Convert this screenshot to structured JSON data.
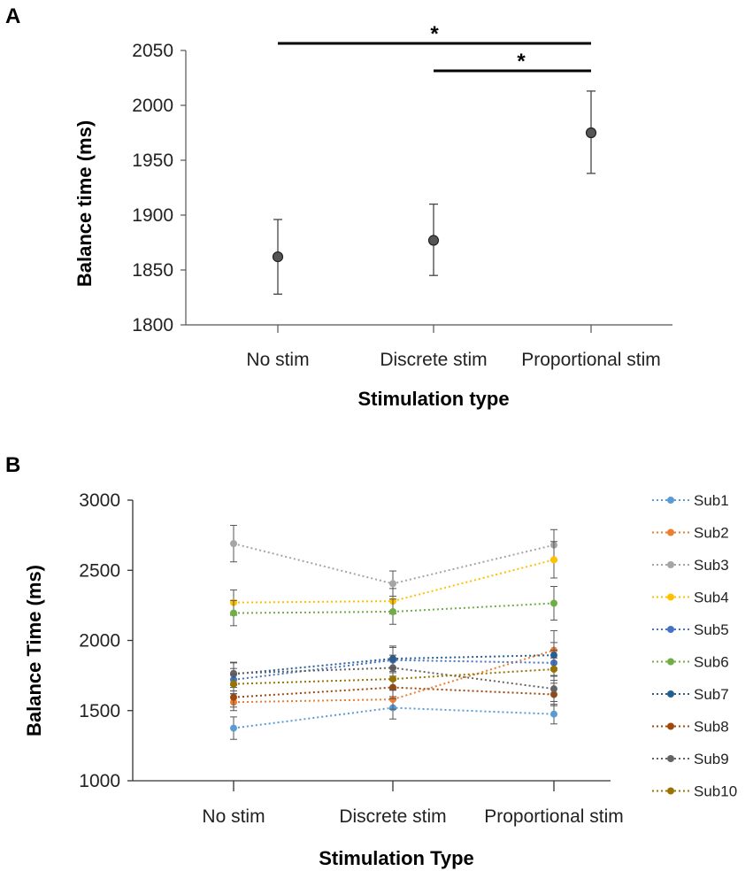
{
  "chart_data": [
    {
      "panel": "A",
      "type": "scatter",
      "title": "",
      "xlabel": "Stimulation type",
      "ylabel": "Balance time (ms)",
      "categories": [
        "No stim",
        "Discrete stim",
        "Proportional stim"
      ],
      "values": [
        1862,
        1877,
        1975
      ],
      "error_low": [
        1828,
        1845,
        1938
      ],
      "error_high": [
        1896,
        1910,
        2013
      ],
      "ylim": [
        1800,
        2050
      ],
      "yticks": [
        1800,
        1850,
        1900,
        1950,
        2000,
        2050
      ],
      "grid": false,
      "significance": [
        {
          "from": "No stim",
          "to": "Proportional stim",
          "label": "*"
        },
        {
          "from": "Discrete stim",
          "to": "Proportional stim",
          "label": "*"
        }
      ],
      "colors": {
        "marker": "#555555",
        "error": "#444444"
      }
    },
    {
      "panel": "B",
      "type": "line",
      "title": "",
      "xlabel": "Stimulation Type",
      "ylabel": "Balance Time (ms)",
      "categories": [
        "No stim",
        "Discrete stim",
        "Proportional stim"
      ],
      "ylim": [
        1000,
        3000
      ],
      "yticks": [
        1000,
        1500,
        2000,
        2500,
        3000
      ],
      "grid": false,
      "legend_position": "right",
      "series": [
        {
          "name": "Sub1",
          "color": "#5b9bd5",
          "values": [
            1375,
            1520,
            1475
          ],
          "error": [
            80,
            80,
            70
          ]
        },
        {
          "name": "Sub2",
          "color": "#ed7d31",
          "values": [
            1560,
            1580,
            1930
          ],
          "error": [
            60,
            70,
            140
          ]
        },
        {
          "name": "Sub3",
          "color": "#a5a5a5",
          "values": [
            2690,
            2405,
            2680
          ],
          "error": [
            130,
            90,
            110
          ]
        },
        {
          "name": "Sub4",
          "color": "#ffc000",
          "values": [
            2270,
            2280,
            2575
          ],
          "error": [
            90,
            90,
            130
          ]
        },
        {
          "name": "Sub5",
          "color": "#4472c4",
          "values": [
            1720,
            1860,
            1840
          ],
          "error": [
            80,
            90,
            90
          ]
        },
        {
          "name": "Sub6",
          "color": "#70ad47",
          "values": [
            2195,
            2205,
            2265
          ],
          "error": [
            90,
            90,
            120
          ]
        },
        {
          "name": "Sub7",
          "color": "#255e91",
          "values": [
            1760,
            1870,
            1895
          ],
          "error": [
            80,
            90,
            90
          ]
        },
        {
          "name": "Sub8",
          "color": "#9e480e",
          "values": [
            1595,
            1665,
            1615
          ],
          "error": [
            70,
            80,
            80
          ]
        },
        {
          "name": "Sub9",
          "color": "#636363",
          "values": [
            1765,
            1805,
            1655
          ],
          "error": [
            80,
            90,
            90
          ]
        },
        {
          "name": "Sub10",
          "color": "#997300",
          "values": [
            1690,
            1725,
            1795
          ],
          "error": [
            70,
            80,
            80
          ]
        }
      ]
    }
  ],
  "panels": {
    "a": "A",
    "b": "B"
  }
}
